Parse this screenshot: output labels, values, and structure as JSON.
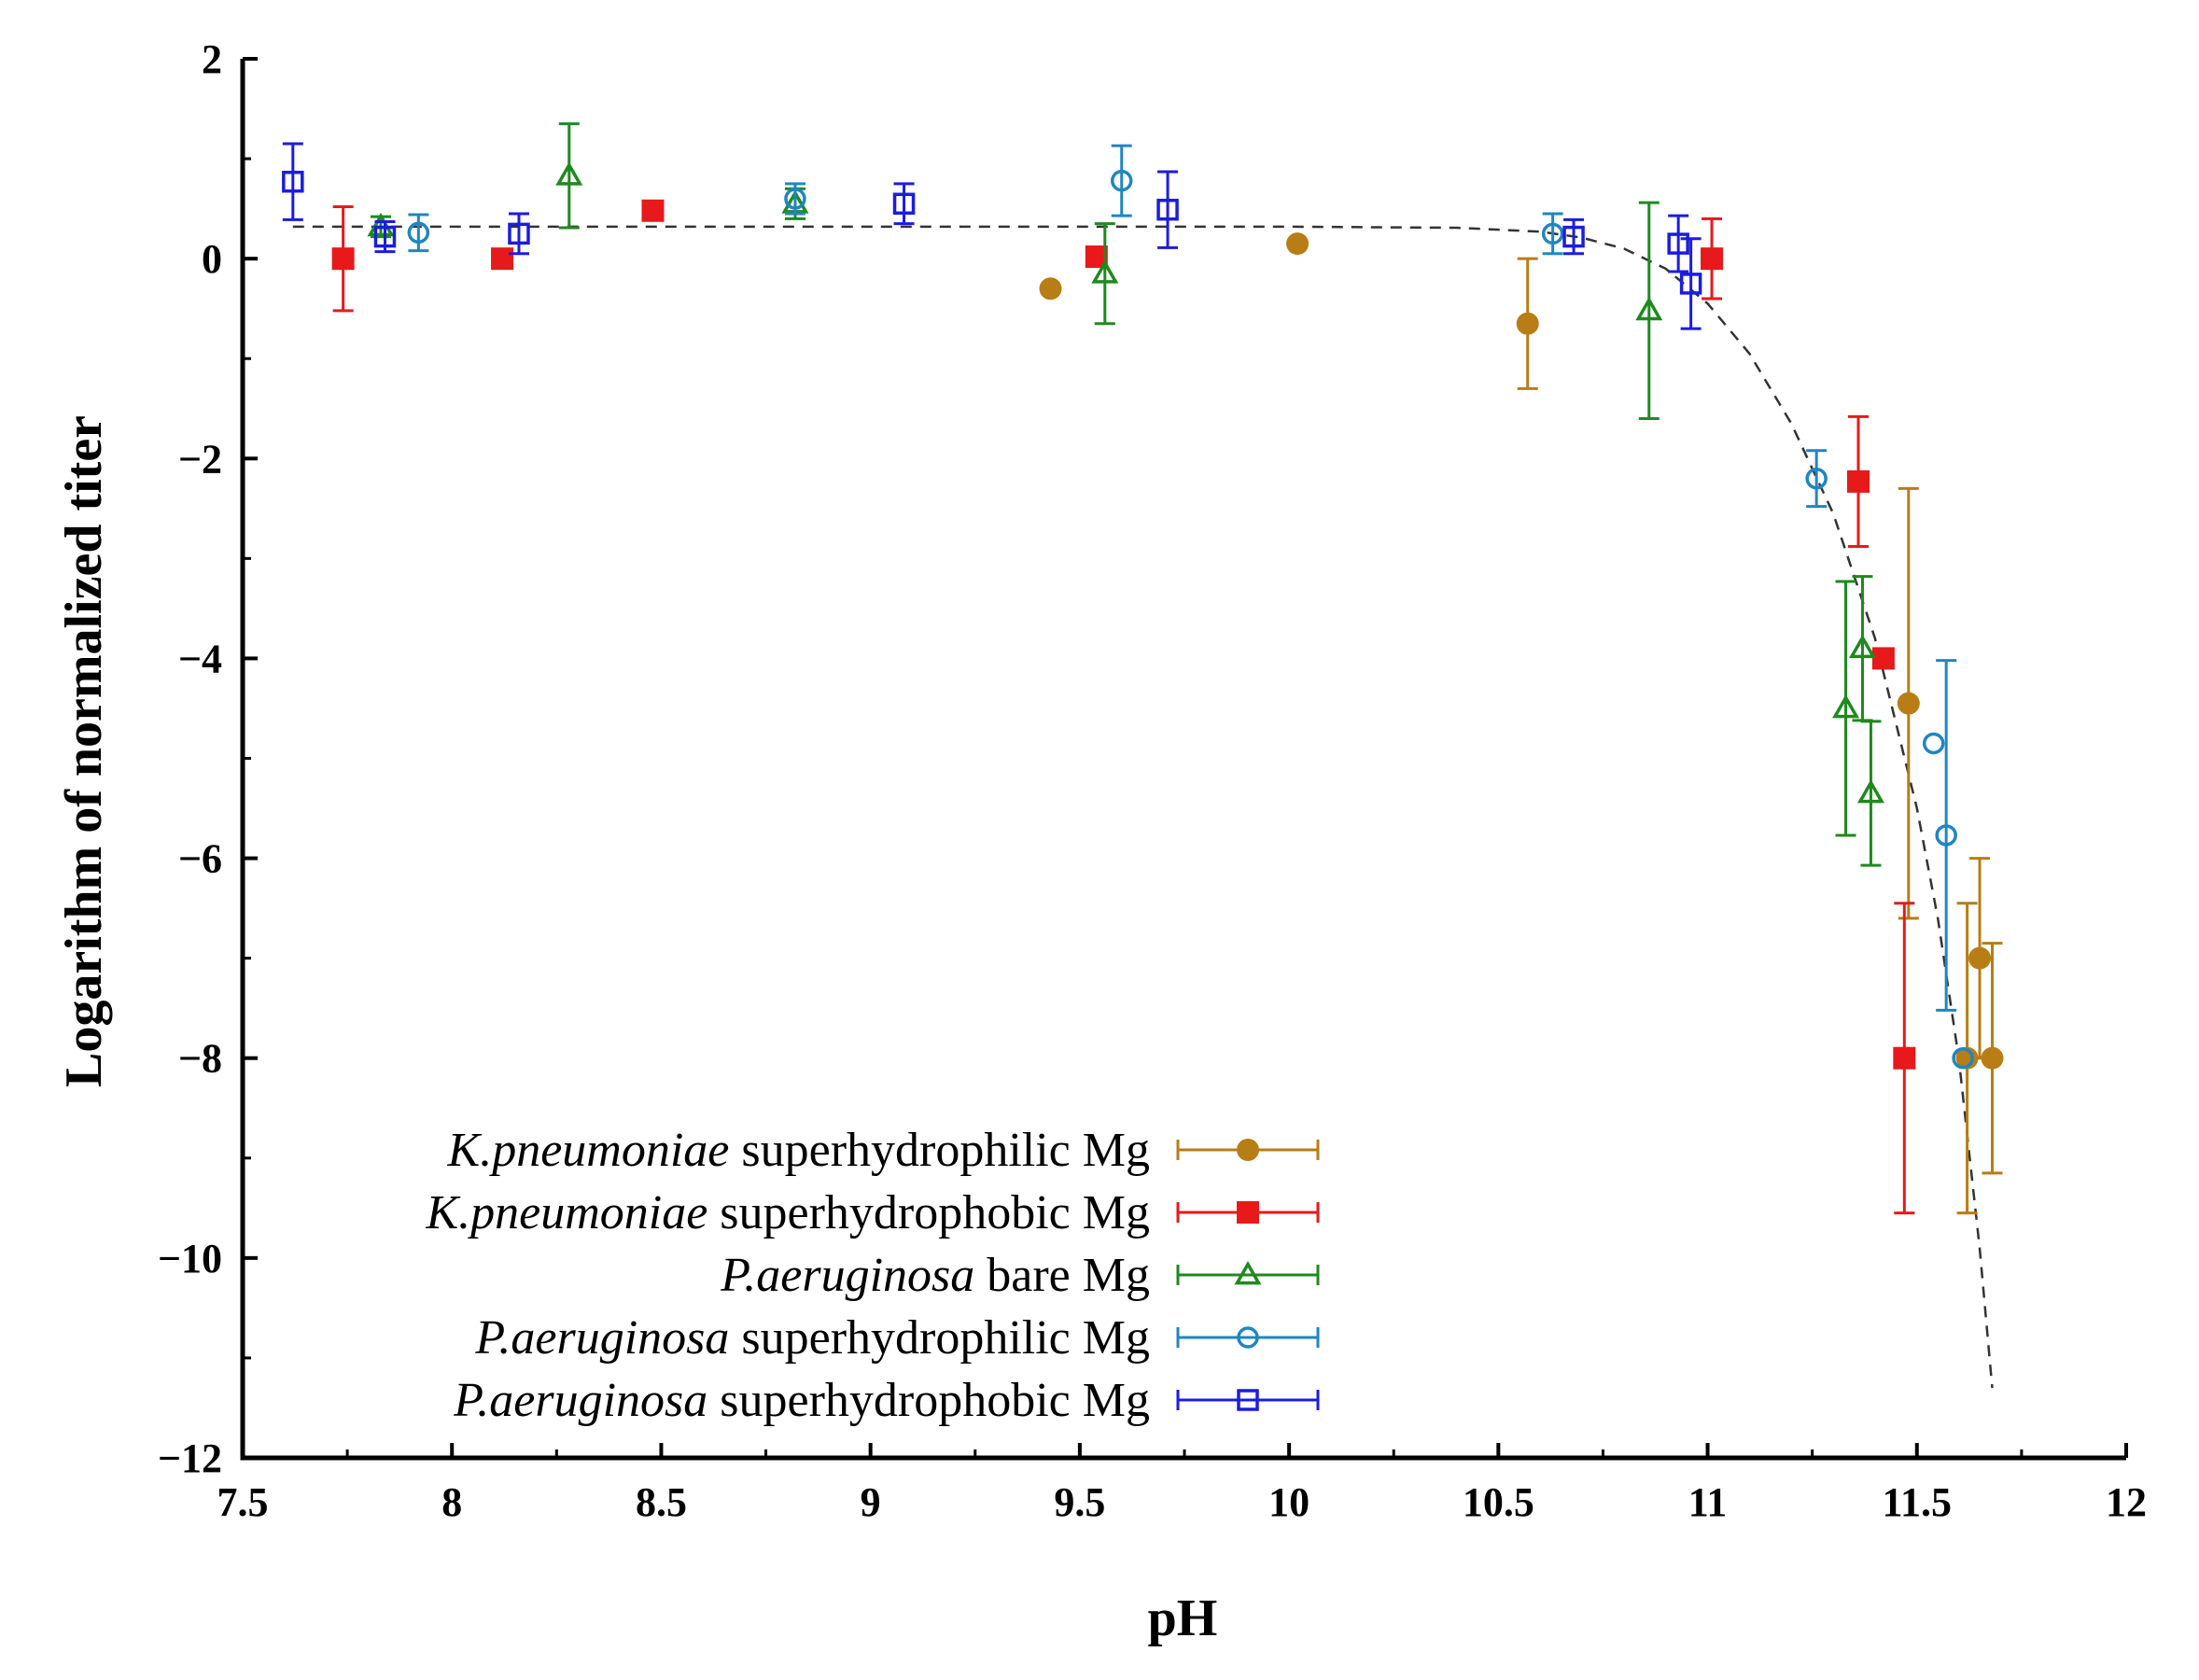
{
  "chart_data": {
    "type": "scatter",
    "title": "",
    "xlabel": "pH",
    "ylabel": "Logarithm of normalized titer",
    "xlim": [
      7.5,
      12
    ],
    "ylim": [
      -12,
      2
    ],
    "xticks": [
      "7.5",
      "8",
      "8.5",
      "9",
      "9.5",
      "10",
      "10.5",
      "11",
      "11.5",
      "12"
    ],
    "yticks": [
      "2",
      "0",
      "−2",
      "−4",
      "−6",
      "−8",
      "−10",
      "−12"
    ],
    "grid": false,
    "legend_position": "bottom-left",
    "series": [
      {
        "species": "K.pneumoniae",
        "name": "superhydrophilic Mg",
        "color": "#b87d14",
        "marker": "filled-circle",
        "points": [
          {
            "x": 9.43,
            "y": -0.3,
            "err": 0
          },
          {
            "x": 10.02,
            "y": 0.15,
            "err": 0
          },
          {
            "x": 10.57,
            "y": -0.65,
            "err": 0.65
          },
          {
            "x": 11.48,
            "y": -4.45,
            "err": 2.15
          },
          {
            "x": 11.65,
            "y": -7.0,
            "err": 1.0
          },
          {
            "x": 11.68,
            "y": -8.0,
            "err": 1.15
          },
          {
            "x": 11.62,
            "y": -8.0,
            "err": 1.55
          }
        ]
      },
      {
        "species": "K.pneumoniae",
        "name": "superhydrophobic Mg",
        "color": "#e8191b",
        "marker": "filled-square",
        "points": [
          {
            "x": 7.74,
            "y": 0.0,
            "err": 0.52
          },
          {
            "x": 8.12,
            "y": 0.0,
            "err": 0
          },
          {
            "x": 8.48,
            "y": 0.48,
            "err": 0
          },
          {
            "x": 9.54,
            "y": 0.02,
            "err": 0
          },
          {
            "x": 11.01,
            "y": 0.0,
            "err": 0.4
          },
          {
            "x": 11.36,
            "y": -2.23,
            "err": 0.65
          },
          {
            "x": 11.42,
            "y": -4.0,
            "err": 0
          },
          {
            "x": 11.47,
            "y": -8.0,
            "err": 1.55
          }
        ]
      },
      {
        "species": "P.aeruginosa",
        "name": "bare Mg",
        "color": "#1e8a1e",
        "marker": "open-triangle",
        "points": [
          {
            "x": 7.83,
            "y": 0.32,
            "err": 0.1
          },
          {
            "x": 8.28,
            "y": 0.83,
            "err": 0.52
          },
          {
            "x": 8.82,
            "y": 0.55,
            "err": 0.15
          },
          {
            "x": 9.56,
            "y": -0.15,
            "err": 0.5
          },
          {
            "x": 10.86,
            "y": -0.52,
            "err": 1.08
          },
          {
            "x": 11.33,
            "y": -4.5,
            "err": 1.27
          },
          {
            "x": 11.37,
            "y": -3.9,
            "err": 0.72
          },
          {
            "x": 11.39,
            "y": -5.35,
            "err": 0.72
          }
        ]
      },
      {
        "species": "P.aeruginosa",
        "name": "superhydrophilic Mg",
        "color": "#1f86c2",
        "marker": "open-circle",
        "points": [
          {
            "x": 7.92,
            "y": 0.26,
            "err": 0.18
          },
          {
            "x": 8.82,
            "y": 0.6,
            "err": 0.15
          },
          {
            "x": 9.6,
            "y": 0.78,
            "err": 0.35
          },
          {
            "x": 10.63,
            "y": 0.25,
            "err": 0.2
          },
          {
            "x": 11.26,
            "y": -2.2,
            "err": 0.28
          },
          {
            "x": 11.54,
            "y": -4.85,
            "err": 0
          },
          {
            "x": 11.57,
            "y": -5.77,
            "err": 1.75
          },
          {
            "x": 11.61,
            "y": -8.0,
            "err": 0
          }
        ]
      },
      {
        "species": "P.aeruginosa",
        "name": "superhydrophobic Mg",
        "color": "#1c1ce0",
        "marker": "open-square",
        "points": [
          {
            "x": 7.62,
            "y": 0.77,
            "err": 0.38
          },
          {
            "x": 7.84,
            "y": 0.22,
            "err": 0.15
          },
          {
            "x": 8.16,
            "y": 0.25,
            "err": 0.2
          },
          {
            "x": 9.08,
            "y": 0.55,
            "err": 0.2
          },
          {
            "x": 9.71,
            "y": 0.49,
            "err": 0.38
          },
          {
            "x": 10.68,
            "y": 0.22,
            "err": 0.17
          },
          {
            "x": 10.93,
            "y": 0.15,
            "err": 0.28
          },
          {
            "x": 10.96,
            "y": -0.25,
            "err": 0.45
          }
        ]
      }
    ],
    "fit_curve": {
      "style": "dashed",
      "color": "#333333",
      "points": [
        {
          "x": 7.62,
          "y": 0.32
        },
        {
          "x": 10.0,
          "y": 0.32
        },
        {
          "x": 10.4,
          "y": 0.31
        },
        {
          "x": 10.6,
          "y": 0.27
        },
        {
          "x": 10.7,
          "y": 0.21
        },
        {
          "x": 10.8,
          "y": 0.1
        },
        {
          "x": 10.9,
          "y": -0.1
        },
        {
          "x": 11.0,
          "y": -0.45
        },
        {
          "x": 11.1,
          "y": -0.95
        },
        {
          "x": 11.2,
          "y": -1.65
        },
        {
          "x": 11.3,
          "y": -2.55
        },
        {
          "x": 11.4,
          "y": -3.8
        },
        {
          "x": 11.5,
          "y": -5.5
        },
        {
          "x": 11.55,
          "y": -6.6
        },
        {
          "x": 11.6,
          "y": -8.0
        },
        {
          "x": 11.65,
          "y": -9.9
        },
        {
          "x": 11.68,
          "y": -11.3
        }
      ]
    }
  }
}
